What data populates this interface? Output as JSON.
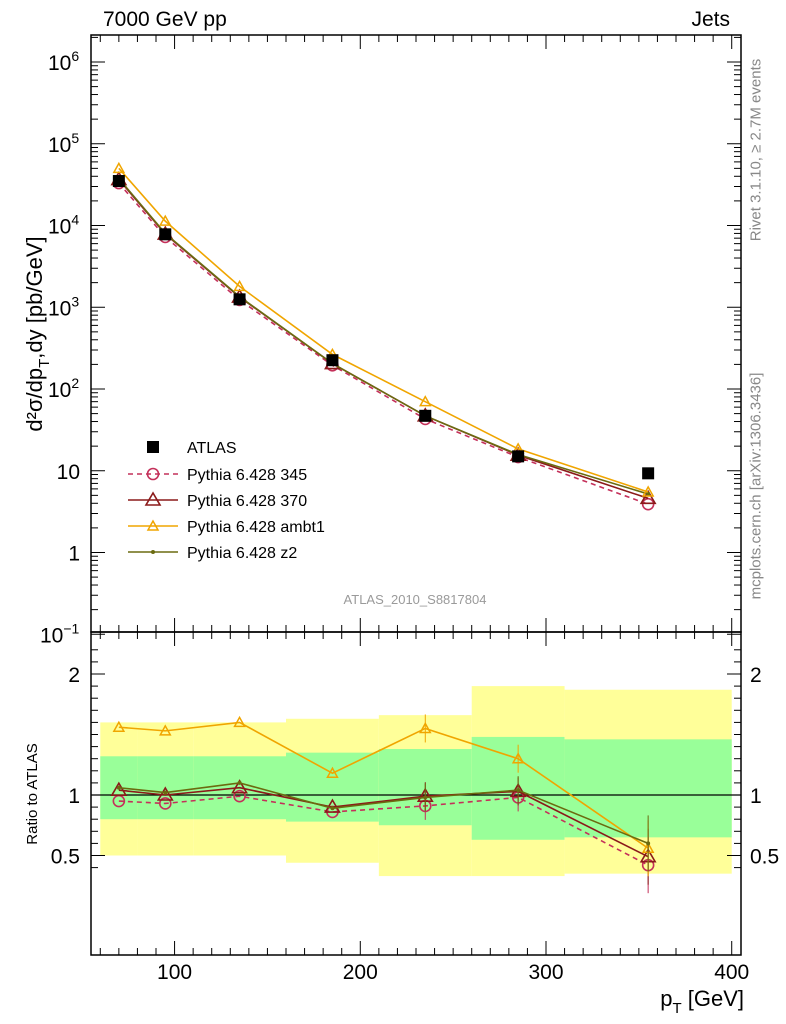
{
  "header": {
    "left": "7000 GeV pp",
    "right": "Jets"
  },
  "side_labels": {
    "rivet": "Rivet 3.1.10, ≥ 2.7M events",
    "mcplots": "mcplots.cern.ch [arXiv:1306.3436]"
  },
  "analysis_id": "ATLAS_2010_S8817804",
  "ylabel_main": "d²σ/dp_T,dy [pb/GeV]",
  "ylabel_ratio": "Ratio to ATLAS",
  "xlabel": "p_T [GeV]",
  "chart_data": [
    {
      "type": "line",
      "panel": "main",
      "yscale": "log",
      "ylim": [
        0.1,
        2500000
      ],
      "xlim": [
        55,
        405
      ],
      "y_ticks": [
        "10⁻¹",
        "1",
        "10",
        "10²",
        "10³",
        "10⁴",
        "10⁵",
        "10⁶"
      ],
      "legend_position": "lower-left",
      "series": [
        {
          "name": "ATLAS",
          "color": "#000000",
          "marker": "square",
          "x": [
            70,
            95,
            135,
            185,
            235,
            285,
            355
          ],
          "y": [
            35000,
            7800,
            1250,
            225,
            47,
            15,
            9.3
          ]
        },
        {
          "name": "Pythia 6.428 345",
          "color": "#c4305a",
          "marker": "open-circle",
          "dash": true,
          "x": [
            70,
            95,
            135,
            185,
            235,
            285,
            355
          ],
          "y": [
            33000,
            7250,
            1230,
            195,
            43,
            14.7,
            3.9
          ]
        },
        {
          "name": "Pythia 6.428 370",
          "color": "#8b1a1a",
          "marker": "open-triangle",
          "x": [
            70,
            95,
            135,
            185,
            235,
            285,
            355
          ],
          "y": [
            36500,
            7850,
            1330,
            205,
            47,
            15.5,
            4.6
          ]
        },
        {
          "name": "Pythia 6.428 ambt1",
          "color": "#f0a500",
          "marker": "open-triangle-small",
          "x": [
            70,
            95,
            135,
            185,
            235,
            285,
            355
          ],
          "y": [
            50000,
            11300,
            1800,
            265,
            70,
            18.5,
            5.5
          ]
        },
        {
          "name": "Pythia 6.428 z2",
          "color": "#6b6b10",
          "marker": "dot",
          "x": [
            70,
            95,
            135,
            185,
            235,
            285,
            355
          ],
          "y": [
            37500,
            8000,
            1350,
            205,
            47,
            15.8,
            5.2
          ]
        }
      ]
    },
    {
      "type": "line",
      "panel": "ratio",
      "ylim": [
        0.35,
        2.3
      ],
      "y_ticks": [
        0.5,
        1,
        2
      ],
      "x_ticks": [
        100,
        200,
        300,
        400
      ],
      "bands": {
        "edges": [
          60,
          80,
          110,
          160,
          210,
          260,
          310,
          400
        ],
        "inner_low": [
          0.8,
          0.8,
          0.8,
          0.78,
          0.75,
          0.63,
          0.65
        ],
        "inner_high": [
          1.32,
          1.32,
          1.32,
          1.35,
          1.38,
          1.48,
          1.46
        ],
        "outer_low": [
          0.5,
          0.5,
          0.5,
          0.44,
          0.33,
          0.33,
          0.35
        ],
        "outer_high": [
          1.6,
          1.6,
          1.6,
          1.63,
          1.66,
          1.9,
          1.87
        ],
        "inner_color": "#99ff99",
        "outer_color": "#ffff99"
      },
      "series": [
        {
          "name": "Pythia 6.428 345",
          "color": "#c4305a",
          "marker": "open-circle",
          "dash": true,
          "x": [
            70,
            95,
            135,
            185,
            235,
            285,
            355
          ],
          "y": [
            0.95,
            0.93,
            0.99,
            0.86,
            0.91,
            0.98,
            0.42
          ]
        },
        {
          "name": "Pythia 6.428 370",
          "color": "#8b1a1a",
          "marker": "open-triangle",
          "x": [
            70,
            95,
            135,
            185,
            235,
            285,
            355
          ],
          "y": [
            1.04,
            1.0,
            1.06,
            0.9,
            0.99,
            1.03,
            0.49
          ]
        },
        {
          "name": "Pythia 6.428 ambt1",
          "color": "#f0a500",
          "marker": "open-triangle-small",
          "x": [
            70,
            95,
            135,
            185,
            235,
            285,
            355
          ],
          "y": [
            1.56,
            1.53,
            1.6,
            1.18,
            1.55,
            1.3,
            0.56
          ]
        },
        {
          "name": "Pythia 6.428 z2",
          "color": "#6b6b10",
          "marker": "dot",
          "x": [
            70,
            95,
            135,
            185,
            235,
            285,
            355
          ],
          "y": [
            1.06,
            1.02,
            1.1,
            0.89,
            0.98,
            1.04,
            0.6
          ]
        }
      ]
    }
  ]
}
